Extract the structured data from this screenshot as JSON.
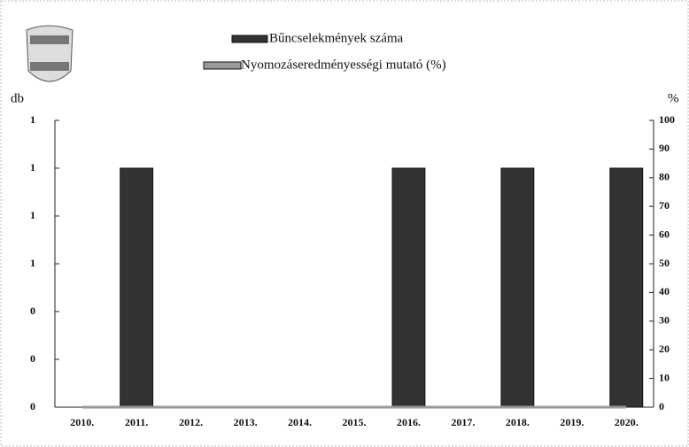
{
  "chart_data": {
    "type": "bar",
    "categories": [
      "2010.",
      "2011.",
      "2012.",
      "2013.",
      "2014.",
      "2015.",
      "2016.",
      "2017.",
      "2018.",
      "2019.",
      "2020."
    ],
    "series": [
      {
        "name": "Bűncselekmények száma",
        "color": "#333333",
        "values": [
          0,
          1,
          0,
          0,
          0,
          0,
          1,
          0,
          1,
          0,
          1
        ]
      },
      {
        "name": "Nyomozáseredményességi mutató (%)",
        "color": "#999999",
        "axis": "y2",
        "values": [
          0,
          0,
          0,
          0,
          0,
          0,
          0,
          0,
          0,
          0,
          0
        ]
      }
    ],
    "ylabel": "db",
    "y2label": "%",
    "ylim": [
      0,
      1.2
    ],
    "yticks": [
      0,
      {
        "value": 0.2,
        "label": "0"
      },
      {
        "value": 0.4,
        "label": "0"
      },
      {
        "value": 0.6,
        "label": "1"
      },
      {
        "value": 0.8,
        "label": "1"
      },
      1,
      {
        "value": 1.2,
        "label": "1"
      }
    ],
    "y2lim": [
      0,
      100
    ],
    "y2ticks": [
      0,
      10,
      20,
      30,
      40,
      50,
      60,
      70,
      80,
      90,
      100
    ]
  }
}
